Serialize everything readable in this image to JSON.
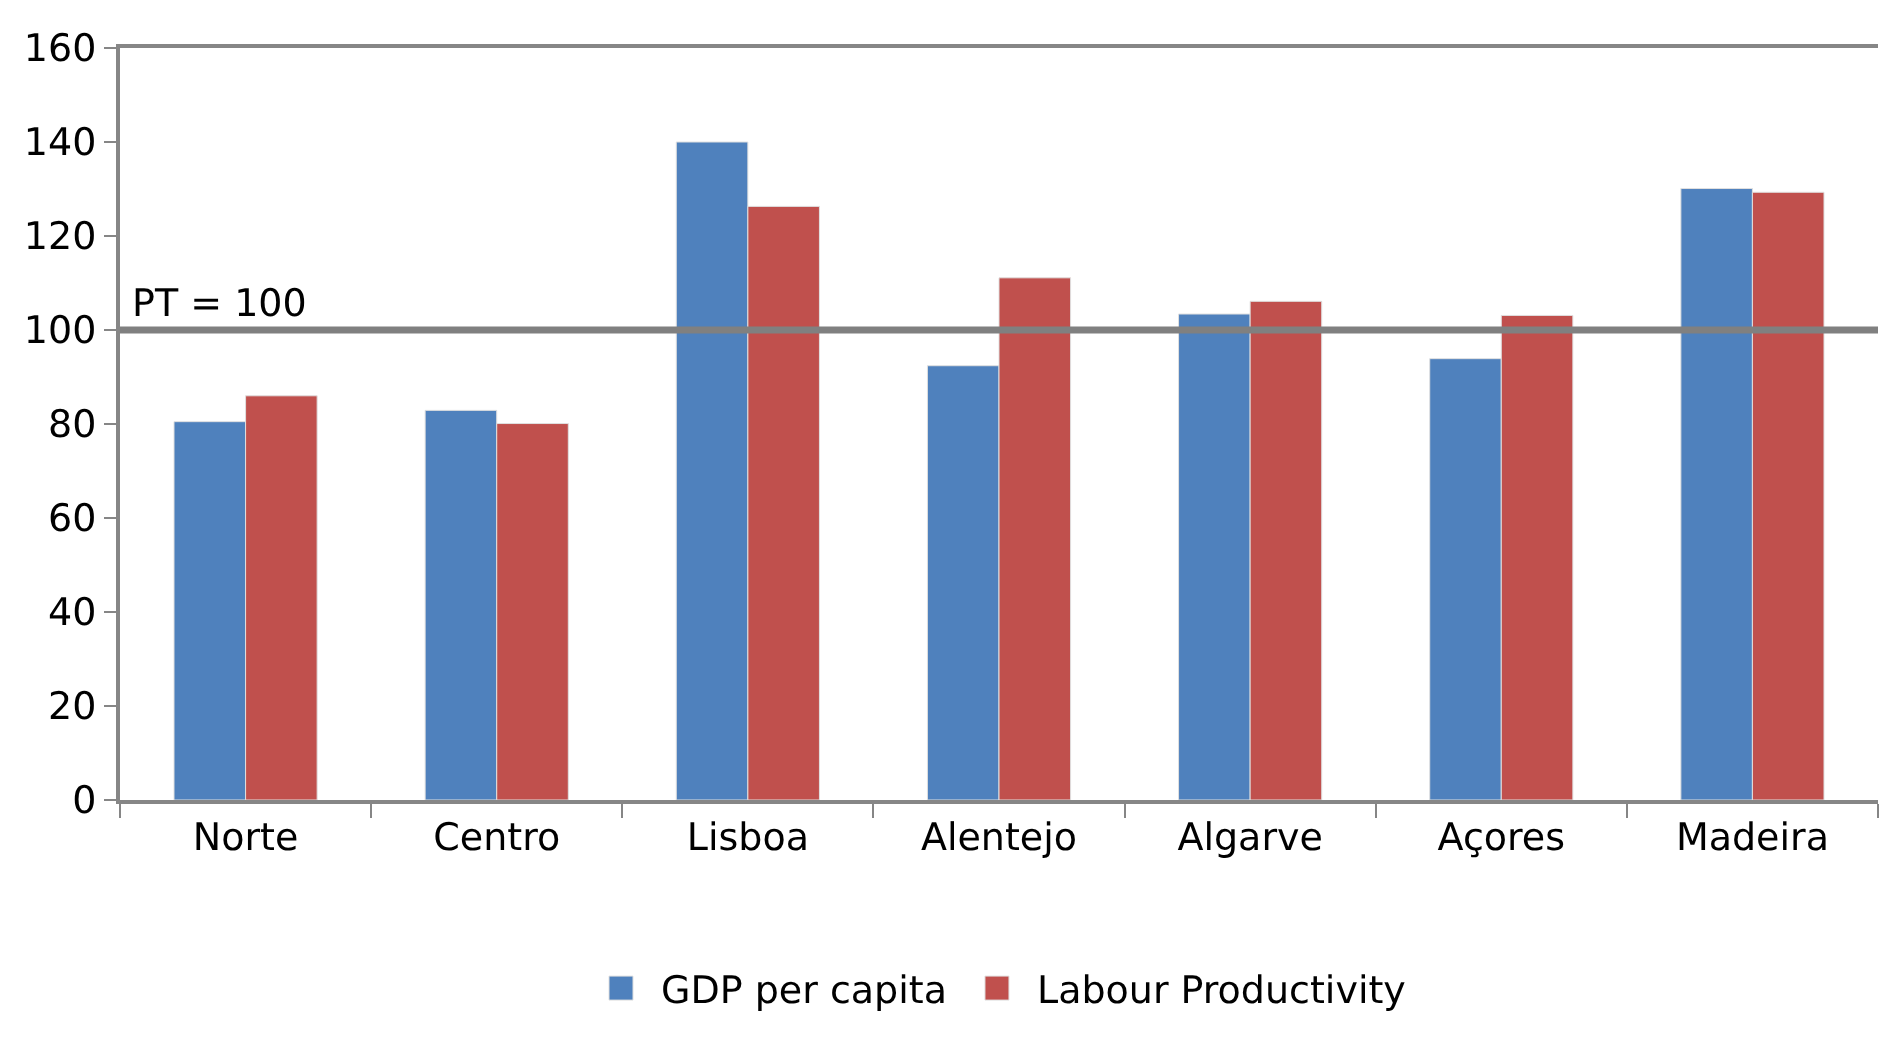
{
  "chart_data": {
    "type": "bar",
    "categories": [
      "Norte",
      "Centro",
      "Lisboa",
      "Alentejo",
      "Algarve",
      "Açores",
      "Madeira"
    ],
    "series": [
      {
        "name": "GDP per capita",
        "color": "#4f81bd",
        "values": [
          80.5,
          82.9,
          140,
          92.4,
          103.4,
          93.9,
          130.1
        ]
      },
      {
        "name": "Labour Productivity",
        "color": "#c0504d",
        "values": [
          86,
          80.1,
          126.3,
          111.1,
          106.1,
          103.1,
          129.3
        ]
      }
    ],
    "ylim": [
      0,
      160
    ],
    "yticks": [
      0,
      20,
      40,
      60,
      80,
      100,
      120,
      140,
      160
    ],
    "ref_lines": [
      {
        "axis": "y",
        "value": 100,
        "label": "PT = 100",
        "color": "#808080"
      }
    ],
    "legend": "bottom"
  }
}
